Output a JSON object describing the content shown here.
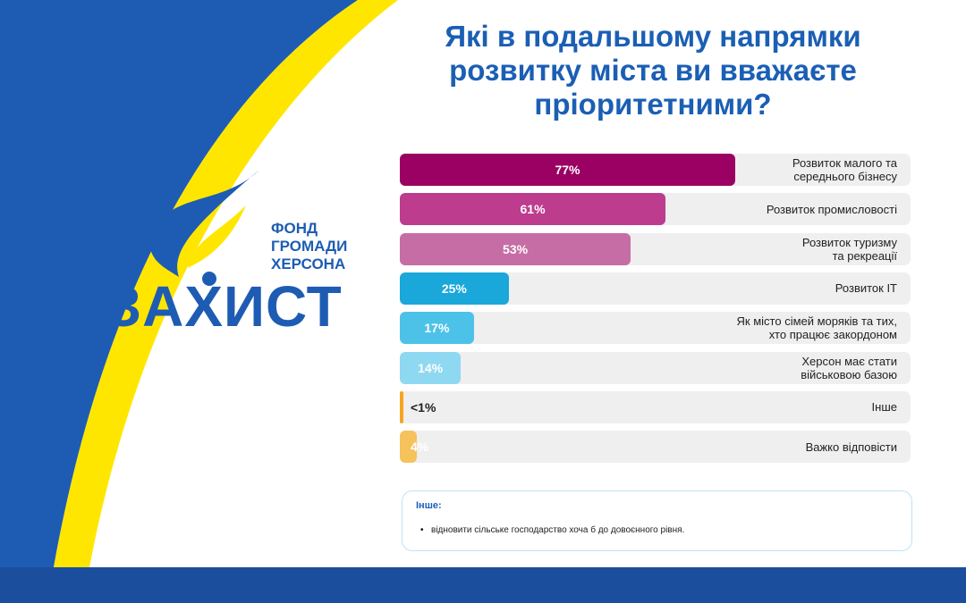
{
  "logo": {
    "lines": [
      "ФОНД",
      "ГРОМАДИ",
      "ХЕРСОНА"
    ],
    "name": "ЗАХИСТ"
  },
  "chart_data": {
    "type": "bar",
    "orientation": "horizontal",
    "title": "Які в подальшому напрямки\nрозвитку міста ви вважаєте\nпріоритетними?",
    "categories": [
      "Розвиток малого та\nсереднього бізнесу",
      "Розвиток промисловості",
      "Розвиток туризму\nта рекреації",
      "Розвиток ІТ",
      "Як місто сімей моряків та тих,\nхто працює закордоном",
      "Херсон має стати\nвійськовою базою",
      "Інше",
      "Важко відповісти"
    ],
    "values": [
      77,
      61,
      53,
      25,
      17,
      14,
      0.5,
      4
    ],
    "value_labels": [
      "77%",
      "61%",
      "53%",
      "25%",
      "17%",
      "14%",
      "<1%",
      "4%"
    ],
    "colors": [
      "#9b0063",
      "#bd3c8e",
      "#c66da6",
      "#1aa7da",
      "#4dc2e8",
      "#8fd8f1",
      "#f6a51f",
      "#f6c25c"
    ],
    "xlim": [
      0,
      100
    ]
  },
  "note": {
    "title": "Інше:",
    "items": [
      "відновити сільське господарство хоча б до довоєнного рівня."
    ]
  }
}
